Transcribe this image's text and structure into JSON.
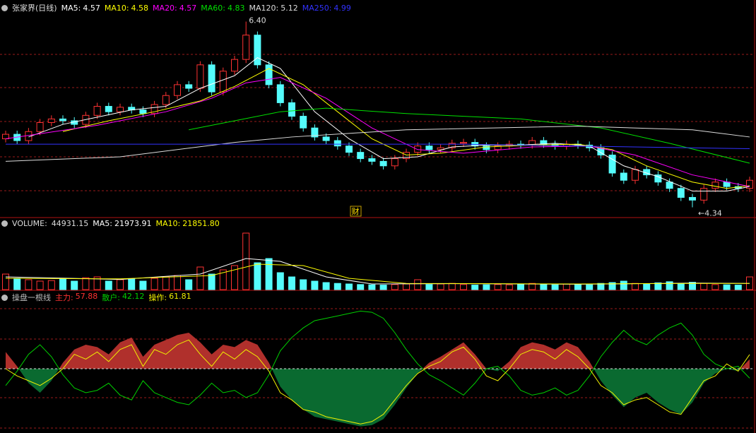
{
  "chart_data": [
    {
      "type": "candlestick",
      "title": "张家界(日线)",
      "up_color": "#ff3232",
      "down_color": "#54fcfc",
      "ylim": [
        4.25,
        6.6
      ],
      "open": [
        5.1,
        5.15,
        5.08,
        5.18,
        5.28,
        5.32,
        5.3,
        5.26,
        5.36,
        5.46,
        5.4,
        5.45,
        5.42,
        5.38,
        5.48,
        5.58,
        5.7,
        5.66,
        5.92,
        5.62,
        5.85,
        5.98,
        6.25,
        5.92,
        5.7,
        5.5,
        5.35,
        5.22,
        5.12,
        5.08,
        5.02,
        4.95,
        4.88,
        4.85,
        4.8,
        4.88,
        4.95,
        5.02,
        4.98,
        5.0,
        5.05,
        5.06,
        5.02,
        4.98,
        5.02,
        5.04,
        5.03,
        5.08,
        5.04,
        5.02,
        5.04,
        5.03,
        5.0,
        4.92,
        4.72,
        4.64,
        4.76,
        4.7,
        4.62,
        4.55,
        4.45,
        4.42,
        4.55,
        4.62,
        4.57,
        4.55
      ],
      "high": [
        5.19,
        5.19,
        5.22,
        5.32,
        5.36,
        5.36,
        5.34,
        5.4,
        5.5,
        5.5,
        5.49,
        5.49,
        5.46,
        5.52,
        5.62,
        5.74,
        5.74,
        5.96,
        5.96,
        5.89,
        6.02,
        6.4,
        6.29,
        5.96,
        5.74,
        5.54,
        5.39,
        5.26,
        5.16,
        5.12,
        5.06,
        4.99,
        4.92,
        4.89,
        4.92,
        4.99,
        5.06,
        5.06,
        5.04,
        5.09,
        5.1,
        5.1,
        5.06,
        5.06,
        5.08,
        5.08,
        5.12,
        5.12,
        5.08,
        5.08,
        5.08,
        5.07,
        5.04,
        4.96,
        4.76,
        4.8,
        4.8,
        4.74,
        4.66,
        4.59,
        4.49,
        4.59,
        4.66,
        4.66,
        4.61,
        4.68
      ],
      "low": [
        5.06,
        5.04,
        5.04,
        5.14,
        5.24,
        5.26,
        5.22,
        5.22,
        5.32,
        5.36,
        5.36,
        5.38,
        5.34,
        5.34,
        5.44,
        5.54,
        5.62,
        5.62,
        5.58,
        5.58,
        5.81,
        5.94,
        5.88,
        5.66,
        5.46,
        5.31,
        5.18,
        5.08,
        5.04,
        4.98,
        4.91,
        4.84,
        4.81,
        4.76,
        4.76,
        4.84,
        4.91,
        4.94,
        4.94,
        4.96,
        5.01,
        4.98,
        4.94,
        4.94,
        4.98,
        4.99,
        4.99,
        5.0,
        4.98,
        4.98,
        4.99,
        4.96,
        4.88,
        4.68,
        4.6,
        4.6,
        4.66,
        4.58,
        4.51,
        4.41,
        4.34,
        4.38,
        4.51,
        4.53,
        4.51,
        4.51
      ],
      "close": [
        5.15,
        5.08,
        5.18,
        5.28,
        5.32,
        5.3,
        5.26,
        5.36,
        5.46,
        5.4,
        5.45,
        5.42,
        5.38,
        5.48,
        5.58,
        5.7,
        5.66,
        5.92,
        5.62,
        5.85,
        5.98,
        6.25,
        5.92,
        5.7,
        5.5,
        5.35,
        5.22,
        5.12,
        5.08,
        5.02,
        4.95,
        4.88,
        4.85,
        4.8,
        4.88,
        4.95,
        5.02,
        4.98,
        5.0,
        5.05,
        5.06,
        5.02,
        4.98,
        5.02,
        5.04,
        5.03,
        5.08,
        5.04,
        5.02,
        5.04,
        5.03,
        5.0,
        4.92,
        4.72,
        4.64,
        4.76,
        4.7,
        4.62,
        4.55,
        4.45,
        4.42,
        4.55,
        4.62,
        4.57,
        4.55,
        4.64
      ],
      "series": [
        {
          "name": "MA5:",
          "color": "#ffffff",
          "x": [
            2,
            5,
            8,
            11,
            14,
            17,
            20,
            22,
            24,
            27,
            30,
            33,
            36,
            39,
            42,
            45,
            48,
            51,
            54,
            57,
            60,
            63,
            65
          ],
          "values": [
            5.12,
            5.26,
            5.34,
            5.42,
            5.46,
            5.66,
            5.8,
            6.0,
            5.88,
            5.4,
            5.1,
            4.88,
            4.9,
            5.01,
            5.03,
            5.03,
            5.05,
            5.02,
            4.8,
            4.68,
            4.52,
            4.52,
            4.57
          ]
        },
        {
          "name": "MA10:",
          "color": "#ffff00",
          "x": [
            5,
            9,
            13,
            17,
            20,
            23,
            26,
            29,
            32,
            35,
            38,
            42,
            46,
            50,
            53,
            56,
            60,
            63,
            65
          ],
          "values": [
            5.18,
            5.3,
            5.4,
            5.52,
            5.68,
            5.88,
            5.7,
            5.4,
            5.1,
            4.92,
            4.94,
            5.01,
            5.03,
            5.04,
            4.98,
            4.8,
            4.62,
            4.55,
            4.58
          ]
        },
        {
          "name": "MA20:",
          "color": "#ff00ff",
          "x": [
            0,
            8,
            14,
            18,
            21,
            24,
            28,
            32,
            36,
            40,
            46,
            51,
            55,
            60,
            65
          ],
          "values": [
            5.1,
            5.25,
            5.4,
            5.55,
            5.72,
            5.78,
            5.55,
            5.22,
            4.98,
            4.94,
            5.01,
            5.02,
            4.92,
            4.7,
            4.57
          ]
        },
        {
          "name": "MA60:",
          "color": "#00e000",
          "x": [
            16,
            20,
            24,
            28,
            35,
            45,
            52,
            58,
            65
          ],
          "values": [
            5.2,
            5.3,
            5.4,
            5.44,
            5.38,
            5.32,
            5.22,
            5.05,
            4.83
          ]
        },
        {
          "name": "MA120:",
          "color": "#dddddd",
          "x": [
            0,
            10,
            20,
            25,
            35,
            50,
            60,
            65
          ],
          "values": [
            4.85,
            4.9,
            5.06,
            5.12,
            5.2,
            5.24,
            5.2,
            5.12
          ]
        },
        {
          "name": "MA250:",
          "color": "#3232ff",
          "x": [
            0,
            20,
            40,
            65
          ],
          "values": [
            5.04,
            5.04,
            5.04,
            4.99
          ]
        }
      ],
      "annotations": [
        {
          "value": 6.4,
          "label": "6.40"
        },
        {
          "value": 4.34,
          "label": "←4.34"
        }
      ],
      "marker": "财"
    },
    {
      "type": "bar",
      "title": "VOLUME:",
      "ylim": [
        0,
        205000
      ],
      "values": [
        55000,
        40000,
        35000,
        30000,
        32000,
        38000,
        30000,
        42000,
        45000,
        30000,
        35000,
        38000,
        30000,
        40000,
        45000,
        50000,
        35000,
        80000,
        55000,
        70000,
        85000,
        200000,
        95000,
        110000,
        60000,
        45000,
        35000,
        30000,
        25000,
        22000,
        20000,
        18000,
        17000,
        16000,
        18000,
        20000,
        35000,
        18000,
        20000,
        22000,
        18000,
        16000,
        17000,
        18000,
        17000,
        20000,
        22000,
        18000,
        17000,
        20000,
        18000,
        17000,
        22000,
        25000,
        30000,
        22000,
        20000,
        24000,
        28000,
        20000,
        26000,
        22000,
        18000,
        17000,
        16000,
        44931.15
      ],
      "series": [
        {
          "name": "MA5:",
          "color": "#ffffff",
          "x": [
            0,
            10,
            17,
            21,
            24,
            28,
            32,
            40,
            50,
            60,
            65
          ],
          "values": [
            45000,
            36000,
            55000,
            110000,
            100000,
            45000,
            20000,
            21000,
            19000,
            23000,
            21973.91
          ]
        },
        {
          "name": "MA10:",
          "color": "#ffff00",
          "x": [
            0,
            10,
            18,
            22,
            26,
            30,
            35,
            50,
            60,
            65
          ],
          "values": [
            40000,
            38000,
            50000,
            90000,
            85000,
            40000,
            22000,
            20000,
            22000,
            21851.8
          ],
          "value_labels": [
            null,
            null,
            null,
            null,
            null,
            null,
            null,
            null,
            null,
            "21851.80"
          ]
        }
      ]
    },
    {
      "type": "area-line",
      "title": "操盘一根线",
      "ylim": [
        0,
        100
      ],
      "baseline": 50,
      "series": [
        {
          "name": "主力:",
          "color": "#ff3232",
          "up_fill": "#b0302c",
          "down_fill": "#0a6a30",
          "values": [
            64,
            52,
            38,
            30,
            40,
            55,
            66,
            70,
            68,
            62,
            72,
            76,
            60,
            70,
            74,
            78,
            80,
            72,
            62,
            70,
            68,
            74,
            70,
            55,
            35,
            24,
            16,
            10,
            8,
            6,
            4,
            2,
            3,
            8,
            20,
            34,
            46,
            55,
            60,
            66,
            72,
            62,
            50,
            48,
            56,
            68,
            72,
            70,
            66,
            72,
            68,
            56,
            40,
            28,
            18,
            26,
            30,
            22,
            16,
            12,
            22,
            38,
            46,
            50,
            48,
            57.88
          ]
        },
        {
          "name": "散户:",
          "color": "#00d000",
          "values": [
            36,
            48,
            62,
            70,
            60,
            45,
            34,
            30,
            32,
            38,
            28,
            24,
            40,
            30,
            26,
            22,
            20,
            28,
            38,
            30,
            32,
            26,
            30,
            45,
            65,
            76,
            84,
            90,
            92,
            94,
            96,
            98,
            97,
            92,
            80,
            66,
            54,
            45,
            40,
            34,
            28,
            38,
            50,
            52,
            44,
            32,
            28,
            30,
            34,
            28,
            32,
            44,
            60,
            72,
            82,
            74,
            70,
            78,
            84,
            88,
            78,
            62,
            54,
            50,
            52,
            42.12
          ]
        },
        {
          "name": "操作:",
          "color": "#f0f000",
          "values": [
            50,
            44,
            40,
            36,
            42,
            50,
            62,
            58,
            64,
            56,
            66,
            70,
            52,
            66,
            62,
            70,
            74,
            62,
            52,
            64,
            58,
            66,
            60,
            48,
            30,
            24,
            16,
            14,
            10,
            8,
            6,
            4,
            6,
            12,
            24,
            36,
            46,
            52,
            56,
            64,
            68,
            58,
            44,
            40,
            50,
            62,
            66,
            64,
            58,
            66,
            60,
            50,
            36,
            30,
            20,
            24,
            26,
            20,
            14,
            12,
            26,
            40,
            44,
            54,
            48,
            61.81
          ]
        }
      ]
    }
  ]
}
